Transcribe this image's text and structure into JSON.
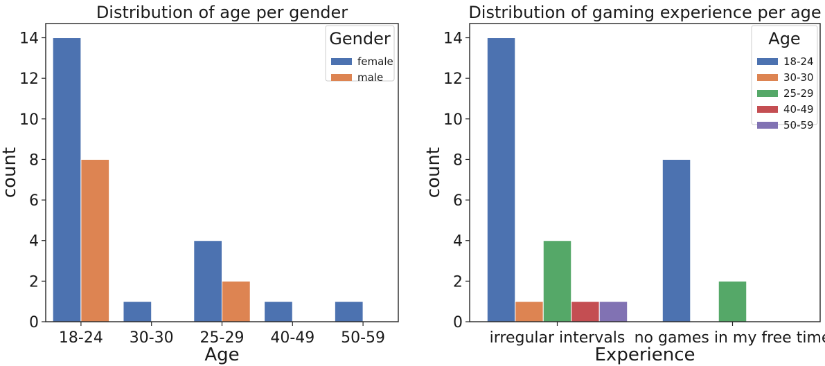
{
  "chart_data": [
    {
      "type": "bar",
      "title": "Distribution of age per gender",
      "xlabel": "Age",
      "ylabel": "count",
      "categories": [
        "18-24",
        "30-30",
        "25-29",
        "40-49",
        "50-59"
      ],
      "series": [
        {
          "name": "female",
          "color": "#4c72b0",
          "values": [
            14,
            1,
            4,
            1,
            1
          ]
        },
        {
          "name": " male",
          "color": "#dd8452",
          "values": [
            8,
            0,
            2,
            0,
            0
          ]
        }
      ],
      "ylim": [
        0,
        14.7
      ],
      "yticks": [
        0,
        2,
        4,
        6,
        8,
        10,
        12,
        14
      ],
      "legend": {
        "title": "Gender",
        "placement": "top-right"
      }
    },
    {
      "type": "bar",
      "title": "Distribution of gaming experience per age",
      "xlabel": "Experience",
      "ylabel": "count",
      "categories": [
        "irregular intervals",
        "no games in my free time"
      ],
      "series": [
        {
          "name": "18-24",
          "color": "#4c72b0",
          "values": [
            14,
            8
          ]
        },
        {
          "name": "30-30",
          "color": "#dd8452",
          "values": [
            1,
            0
          ]
        },
        {
          "name": "25-29",
          "color": "#55a868",
          "values": [
            4,
            2
          ]
        },
        {
          "name": "40-49",
          "color": "#c44e52",
          "values": [
            1,
            0
          ]
        },
        {
          "name": "50-59",
          "color": "#8172b3",
          "values": [
            1,
            0
          ]
        }
      ],
      "ylim": [
        0,
        14.7
      ],
      "yticks": [
        0,
        2,
        4,
        6,
        8,
        10,
        12,
        14
      ],
      "legend": {
        "title": "Age",
        "placement": "top-right"
      }
    }
  ]
}
